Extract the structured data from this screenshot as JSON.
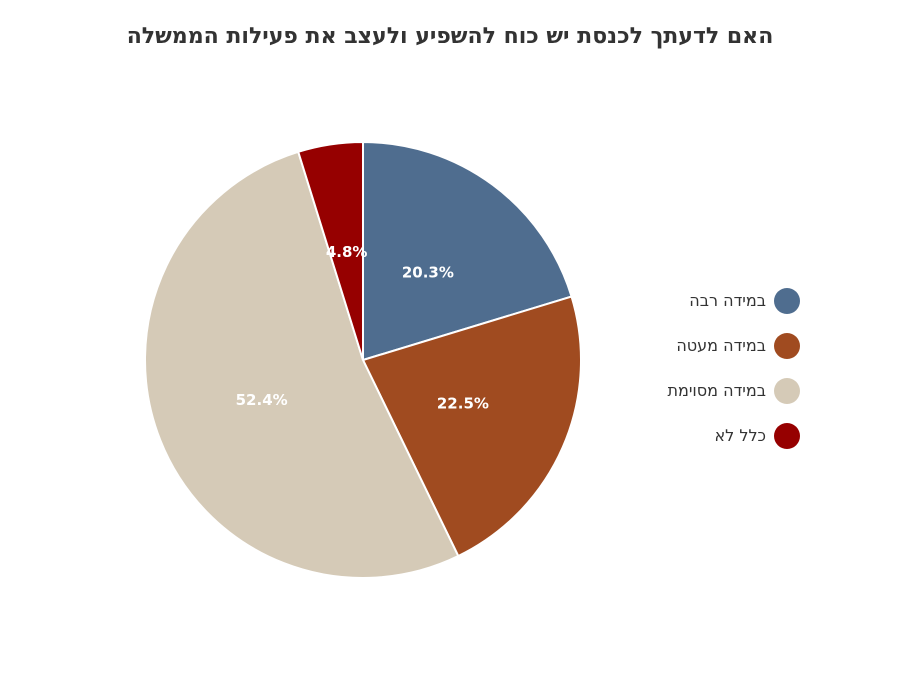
{
  "chart_data": {
    "type": "pie",
    "title": "האם לדעתך לכנסת יש כוח להשפיע ולעצב את פעילות הממשלה",
    "categories": [
      "במידה רבה",
      "במידה מעטה",
      "במידה מסוימת",
      "כלל לא"
    ],
    "values": [
      20.3,
      22.5,
      52.4,
      4.8
    ],
    "labels": [
      "20.3%",
      "22.5%",
      "52.4%",
      "4.8%"
    ],
    "colors": [
      "#4f6d8f",
      "#a04b20",
      "#d5cab7",
      "#960000"
    ],
    "legend_position": "right"
  }
}
